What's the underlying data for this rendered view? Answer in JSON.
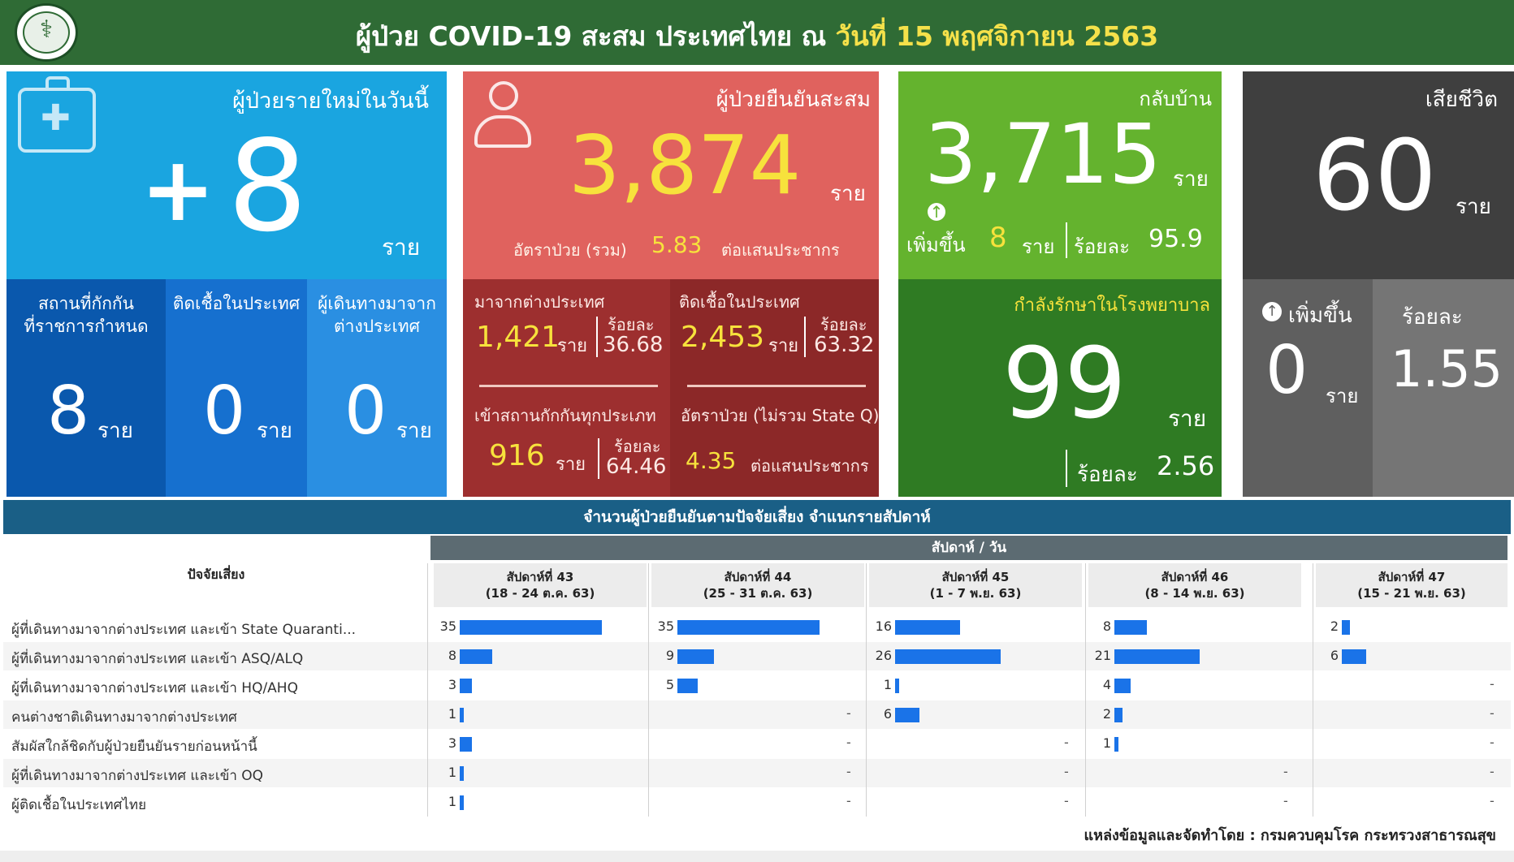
{
  "header": {
    "title_main": "ผู้ป่วย COVID-19 สะสม  ประเทศไทย  ณ ",
    "title_date": "วันที่ 15 พฤศจิกายน 2563",
    "logo_icon": "ministry-of-public-health-seal-icon"
  },
  "new_today": {
    "title": "ผู้ป่วยรายใหม่ในวันนี้",
    "plus": "+",
    "value": "8",
    "unit": "ราย",
    "icon": "first-aid-kit-icon",
    "color": "#1aa5e0",
    "breakdown": [
      {
        "label_line1": "สถานที่กักกัน",
        "label_line2": "ที่ราชการกำหนด",
        "value": "8",
        "unit": "ราย"
      },
      {
        "label_line1": "ติดเชื้อในประเทศ",
        "label_line2": "",
        "value": "0",
        "unit": "ราย"
      },
      {
        "label_line1": "ผู้เดินทางมาจาก",
        "label_line2": "ต่างประเทศ",
        "value": "0",
        "unit": "ราย"
      }
    ]
  },
  "confirmed": {
    "title": "ผู้ป่วยยืนยันสะสม",
    "value": "3,874",
    "unit": "ราย",
    "icon": "person-icon",
    "color": "#e0625e",
    "rate_label": "อัตราป่วย (รวม)",
    "rate_value": "5.83",
    "rate_suffix": "ต่อแสนประชากร",
    "abroad": {
      "label": "มาจากต่างประเทศ",
      "value": "1,421",
      "unit": "ราย",
      "pct_label": "ร้อยละ",
      "pct_value": "36.68"
    },
    "domestic": {
      "label": "ติดเชื้อในประเทศ",
      "value": "2,453",
      "unit": "ราย",
      "pct_label": "ร้อยละ",
      "pct_value": "63.32"
    },
    "quarantine": {
      "label": "เข้าสถานกักกันทุกประเภท",
      "value": "916",
      "unit": "ราย",
      "pct_label": "ร้อยละ",
      "pct_value": "64.46"
    },
    "rate_ex": {
      "label": "อัตราป่วย (ไม่รวม State Q)",
      "value": "4.35",
      "suffix": "ต่อแสนประชากร"
    }
  },
  "recovered": {
    "title": "กลับบ้าน",
    "value": "3,715",
    "unit": "ราย",
    "inc_icon": "arrow-up-circle-icon",
    "inc_label": "เพิ่มขึ้น",
    "inc_value": "8",
    "inc_unit": "ราย",
    "pct_label": "ร้อยละ",
    "pct_value": "95.9",
    "color": "#64b32e"
  },
  "hospitalized": {
    "title": "กำลังรักษาในโรงพยาบาล",
    "value": "99",
    "unit": "ราย",
    "pct_label": "ร้อยละ",
    "pct_value": "2.56",
    "color": "#2f7b23"
  },
  "deaths": {
    "title": "เสียชีวิต",
    "value": "60",
    "unit": "ราย",
    "inc_icon": "arrow-up-circle-icon",
    "inc_label": "เพิ่มขึ้น",
    "inc_value": "0",
    "inc_unit": "ราย",
    "pct_label": "ร้อยละ",
    "pct_value": "1.55",
    "color": "#3f3f3f"
  },
  "table": {
    "title": "จำนวนผู้ป่วยยืนยันตามปัจจัยเสี่ยง จำแนกรายสัปดาห์",
    "group_header": "สัปดาห์ / วัน",
    "row_header": "ปัจจัยเสี่ยง",
    "bar_color": "#1a73e8",
    "weeks": [
      {
        "line1": "สัปดาห์ที่ 43",
        "line2": "(18 - 24 ต.ค. 63)"
      },
      {
        "line1": "สัปดาห์ที่ 44",
        "line2": "(25 - 31 ต.ค. 63)"
      },
      {
        "line1": "สัปดาห์ที่ 45",
        "line2": "(1 - 7 พ.ย. 63)"
      },
      {
        "line1": "สัปดาห์ที่ 46",
        "line2": "(8 - 14 พ.ย. 63)"
      },
      {
        "line1": "สัปดาห์ที่ 47",
        "line2": "(15 - 21 พ.ย. 63)"
      }
    ],
    "rows": [
      {
        "label": "ผู้ที่เดินทางมาจากต่างประเทศ และเข้า State Quaranti...",
        "values": [
          35,
          35,
          16,
          8,
          2
        ]
      },
      {
        "label": "ผู้ที่เดินทางมาจากต่างประเทศ และเข้า ASQ/ALQ",
        "values": [
          8,
          9,
          26,
          21,
          6
        ]
      },
      {
        "label": "ผู้ที่เดินทางมาจากต่างประเทศ และเข้า HQ/AHQ",
        "values": [
          3,
          5,
          1,
          4,
          null
        ]
      },
      {
        "label": "คนต่างชาติเดินทางมาจากต่างประเทศ",
        "values": [
          1,
          null,
          6,
          2,
          null
        ]
      },
      {
        "label": "สัมผัสใกล้ชิดกับผู้ป่วยยืนยันรายก่อนหน้านี้",
        "values": [
          3,
          null,
          null,
          1,
          null
        ]
      },
      {
        "label": "ผู้ที่เดินทางมาจากต่างประเทศ และเข้า OQ",
        "values": [
          1,
          null,
          null,
          null,
          null
        ]
      },
      {
        "label": "ผู้ติดเชื้อในประเทศไทย",
        "values": [
          1,
          null,
          null,
          null,
          null
        ]
      }
    ],
    "empty_marker": "-"
  },
  "source": "แหล่งข้อมูลและจัดทำโดย : กรมควบคุมโรค กระทรวงสาธารณสุข"
}
